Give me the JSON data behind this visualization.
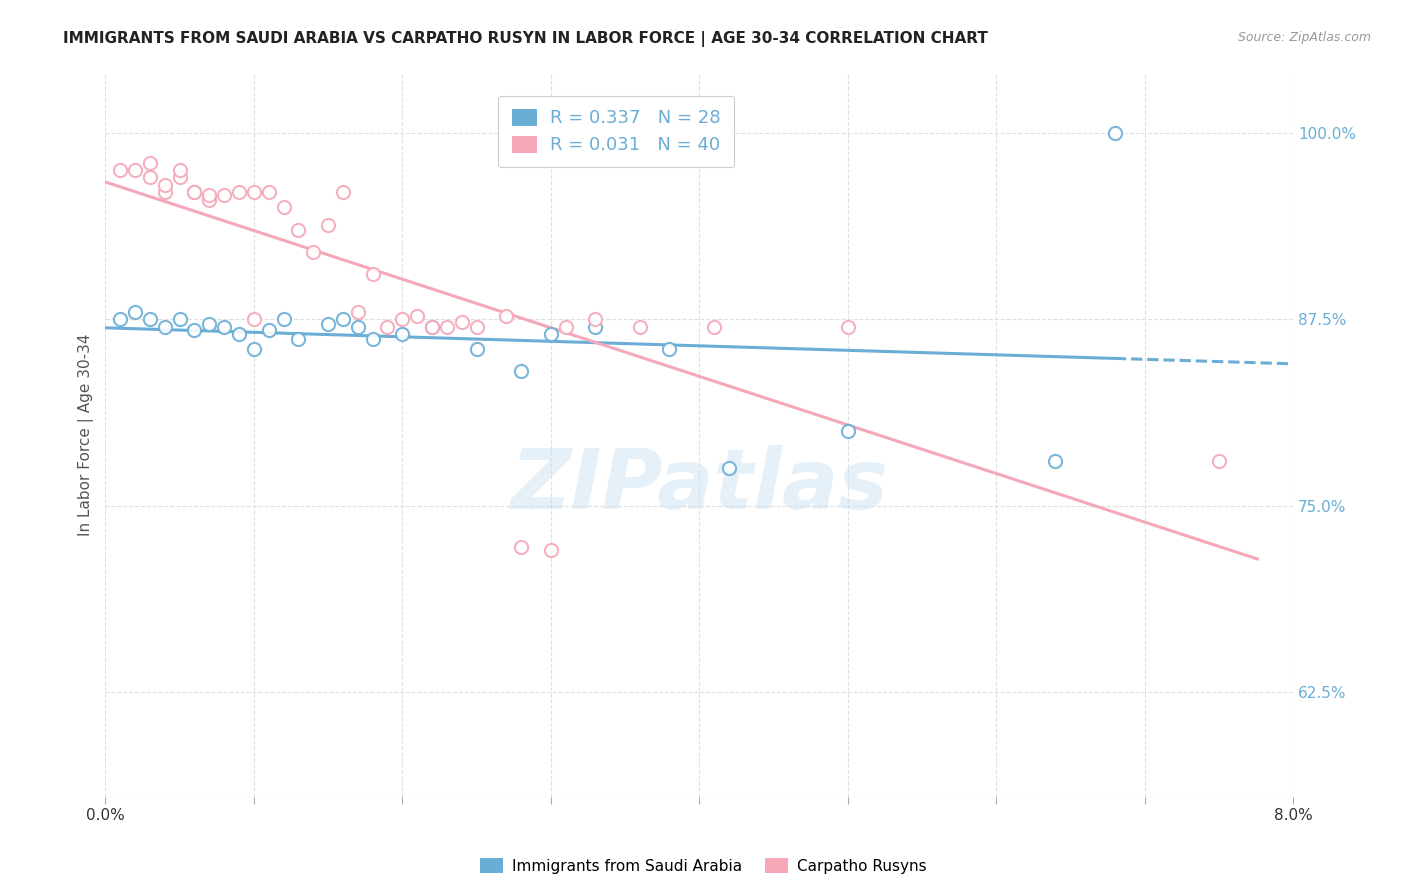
{
  "title": "IMMIGRANTS FROM SAUDI ARABIA VS CARPATHO RUSYN IN LABOR FORCE | AGE 30-34 CORRELATION CHART",
  "source": "Source: ZipAtlas.com",
  "ylabel": "In Labor Force | Age 30-34",
  "xlim": [
    0.0,
    0.08
  ],
  "ylim": [
    0.555,
    1.04
  ],
  "xticks": [
    0.0,
    0.01,
    0.02,
    0.03,
    0.04,
    0.05,
    0.06,
    0.07,
    0.08
  ],
  "yticks_right": [
    0.625,
    0.75,
    0.875,
    1.0
  ],
  "ytick_right_labels": [
    "62.5%",
    "75.0%",
    "87.5%",
    "100.0%"
  ],
  "blue_color": "#6aaed6",
  "pink_color": "#f4a8b8",
  "blue_R": 0.337,
  "blue_N": 28,
  "pink_R": 0.031,
  "pink_N": 40,
  "saudi_x": [
    0.001,
    0.002,
    0.003,
    0.004,
    0.005,
    0.006,
    0.007,
    0.008,
    0.009,
    0.01,
    0.011,
    0.012,
    0.013,
    0.015,
    0.016,
    0.017,
    0.018,
    0.02,
    0.022,
    0.025,
    0.028,
    0.03,
    0.033,
    0.038,
    0.042,
    0.05,
    0.064,
    0.068
  ],
  "saudi_y": [
    0.875,
    0.88,
    0.875,
    0.87,
    0.875,
    0.868,
    0.872,
    0.87,
    0.865,
    0.855,
    0.868,
    0.875,
    0.862,
    0.872,
    0.875,
    0.87,
    0.862,
    0.865,
    0.87,
    0.855,
    0.84,
    0.865,
    0.87,
    0.855,
    0.775,
    0.8,
    0.78,
    1.0
  ],
  "rusyn_x": [
    0.001,
    0.002,
    0.003,
    0.003,
    0.004,
    0.004,
    0.005,
    0.005,
    0.006,
    0.006,
    0.007,
    0.007,
    0.008,
    0.009,
    0.01,
    0.01,
    0.011,
    0.012,
    0.013,
    0.014,
    0.015,
    0.016,
    0.017,
    0.018,
    0.019,
    0.02,
    0.021,
    0.022,
    0.023,
    0.024,
    0.025,
    0.027,
    0.028,
    0.03,
    0.031,
    0.033,
    0.036,
    0.041,
    0.05,
    0.075
  ],
  "rusyn_y": [
    0.975,
    0.975,
    0.97,
    0.98,
    0.96,
    0.965,
    0.97,
    0.975,
    0.96,
    0.96,
    0.955,
    0.958,
    0.958,
    0.96,
    0.875,
    0.96,
    0.96,
    0.95,
    0.935,
    0.92,
    0.938,
    0.96,
    0.88,
    0.905,
    0.87,
    0.875,
    0.877,
    0.87,
    0.87,
    0.873,
    0.87,
    0.877,
    0.722,
    0.72,
    0.87,
    0.875,
    0.87,
    0.87,
    0.87,
    0.78
  ],
  "watermark": "ZIPatlas",
  "background_color": "#ffffff",
  "grid_color": "#e0e0e0"
}
